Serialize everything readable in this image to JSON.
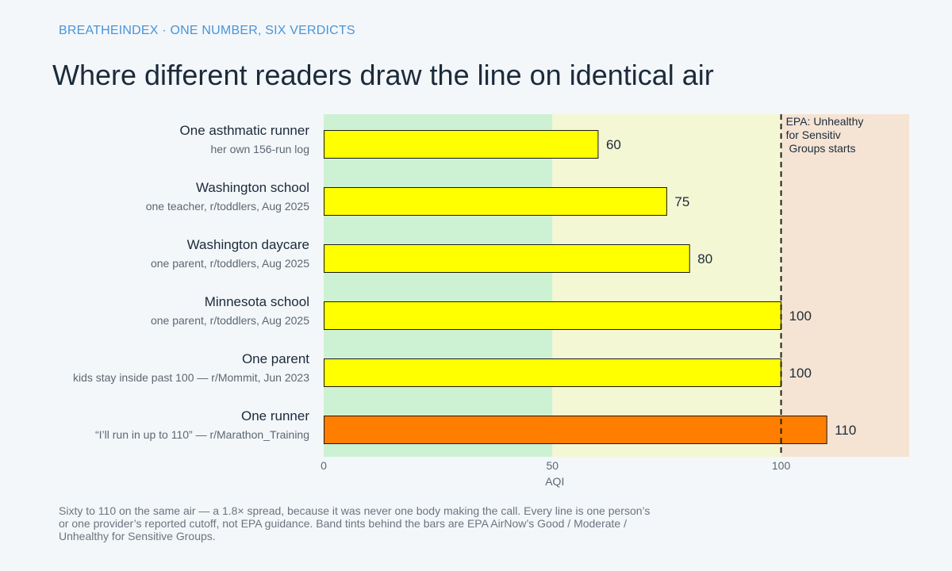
{
  "header": {
    "kicker": "BREATHEINDEX · ONE NUMBER, SIX VERDICTS",
    "title": "Where different readers draw the line on identical air"
  },
  "footnote": "Sixty to 110 on the same air — a 1.8× spread, because it was never one body making the call. Every line is one person’s or one provider’s reported cutoff, not EPA guidance. Band tints behind the bars are EPA AirNow’s Good / Moderate / Unhealthy for Sensitive Groups.",
  "chart_data": {
    "type": "bar",
    "orientation": "horizontal",
    "xlabel": "AQI",
    "xlim": [
      0,
      128
    ],
    "xticks": [
      0,
      50,
      100
    ],
    "categories": [
      "One asthmatic runner",
      "Washington school",
      "Washington daycare",
      "Minnesota school",
      "One parent",
      "One runner"
    ],
    "sublabels": [
      "her own 156-run log",
      "one teacher, r/toddlers, Aug 2025",
      "one parent, r/toddlers, Aug 2025",
      "one parent, r/toddlers, Aug 2025",
      "kids stay inside past 100 — r/Mommit, Jun 2023",
      "“I’ll run in up to 110” — r/Marathon_Training"
    ],
    "values": [
      60,
      75,
      80,
      100,
      100,
      110
    ],
    "bar_colors": [
      "#ffff00",
      "#ffff00",
      "#ffff00",
      "#ffff00",
      "#ffff00",
      "#ff7e00"
    ],
    "bands": [
      {
        "from": 0,
        "to": 50,
        "color": "#cdf2d3"
      },
      {
        "from": 50,
        "to": 100,
        "color": "#f4f7d3"
      },
      {
        "from": 100,
        "to": 128,
        "color": "#f5e4d3"
      }
    ],
    "reference_line": {
      "x": 100,
      "label": "EPA: Unhealthy for Sensitive Groups starts"
    },
    "grid": false,
    "legend": "none"
  }
}
